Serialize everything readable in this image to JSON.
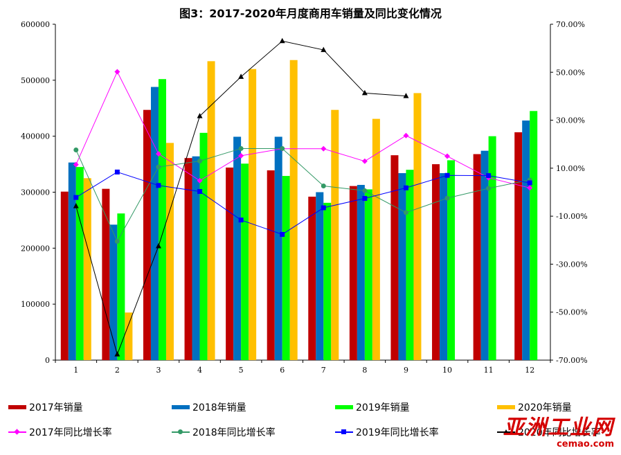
{
  "title": "图3：2017-2020年月度商用车销量及同比变化情况",
  "chart_data": {
    "type": "bar+line",
    "title": "图3：2017-2020年月度商用车销量及同比变化情况",
    "categories": [
      "1",
      "2",
      "3",
      "4",
      "5",
      "6",
      "7",
      "8",
      "9",
      "10",
      "11",
      "12"
    ],
    "y_left": {
      "min": 0,
      "max": 600000,
      "ticks": [
        0,
        100000,
        200000,
        300000,
        400000,
        500000,
        600000
      ],
      "tick_labels": [
        "0",
        "100000",
        "200000",
        "300000",
        "400000",
        "500000",
        "600000"
      ]
    },
    "y_right": {
      "min": -70,
      "max": 70,
      "ticks": [
        -70,
        -50,
        -30,
        -10,
        10,
        30,
        50,
        70
      ],
      "tick_labels": [
        "-70.00%",
        "-50.00%",
        "-30.00%",
        "-10.00%",
        "10.00%",
        "30.00%",
        "50.00%",
        "70.00%"
      ]
    },
    "bar_series": [
      {
        "name": "2017年销量",
        "color": "#c00000",
        "values": [
          301000,
          306000,
          447000,
          361000,
          344000,
          339000,
          292000,
          311000,
          366000,
          350000,
          368000,
          407000
        ]
      },
      {
        "name": "2018年销量",
        "color": "#0070c0",
        "values": [
          353000,
          242000,
          488000,
          364000,
          399000,
          399000,
          300000,
          313000,
          334000,
          334000,
          374000,
          428000
        ]
      },
      {
        "name": "2019年销量",
        "color": "#00ff00",
        "values": [
          345000,
          262000,
          502000,
          406000,
          351000,
          329000,
          281000,
          305000,
          340000,
          357000,
          400000,
          445000
        ]
      },
      {
        "name": "2020年销量",
        "color": "#ffc000",
        "values": [
          325000,
          85000,
          388000,
          534000,
          520000,
          536000,
          447000,
          431000,
          477000,
          null,
          null,
          null
        ]
      }
    ],
    "line_series": [
      {
        "name": "2017年同比增长率",
        "color": "#ff00ff",
        "marker": "diamond",
        "values": [
          11.5,
          50.2,
          16.0,
          4.8,
          15.2,
          18.1,
          18.1,
          12.9,
          23.6,
          15.0,
          6.0,
          1.8
        ]
      },
      {
        "name": "2018年同比增长率",
        "color": "#339966",
        "marker": "circle",
        "values": [
          17.6,
          -20.5,
          10.5,
          13.0,
          18.2,
          18.2,
          2.6,
          0.6,
          -8.5,
          -2.5,
          1.6,
          5.1
        ]
      },
      {
        "name": "2019年同比增长率",
        "color": "#0000ff",
        "marker": "square",
        "values": [
          -2.2,
          8.4,
          2.8,
          0.3,
          -11.6,
          -17.6,
          -6.5,
          -2.6,
          1.8,
          7.0,
          6.9,
          3.9
        ]
      },
      {
        "name": "2020年同比增长率",
        "color": "#000000",
        "marker": "triangle",
        "values": [
          -5.8,
          -67.6,
          -22.5,
          31.7,
          48.1,
          63.0,
          59.3,
          41.3,
          40.1,
          null,
          null,
          null
        ]
      }
    ]
  },
  "legend": {
    "bar_2017": "2017年销量",
    "bar_2018": "2018年销量",
    "bar_2019": "2019年销量",
    "bar_2020": "2020年销量",
    "line_2017": "2017年同比增长率",
    "line_2018": "2018年同比增长率",
    "line_2019": "2019年同比增长率",
    "line_2020": "2020年同比增长率"
  },
  "watermark": {
    "main": "亚洲工业网",
    "url": "cemao.com"
  }
}
